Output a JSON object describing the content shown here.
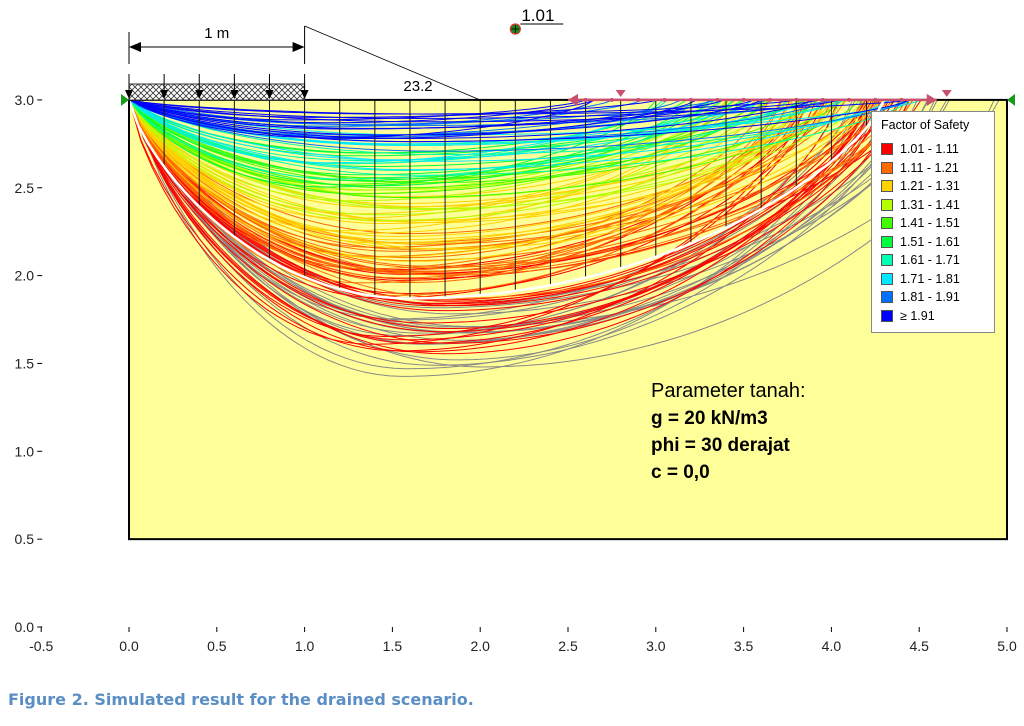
{
  "chart_data": {
    "type": "slope-stability-slip-surfaces",
    "xlim": [
      -0.5,
      5.0
    ],
    "ylim": [
      0.0,
      3.0
    ],
    "x_ticks": [
      "-0.5",
      "0.0",
      "0.5",
      "1.0",
      "1.5",
      "2.0",
      "2.5",
      "3.0",
      "3.5",
      "4.0",
      "4.5",
      "5.0"
    ],
    "y_ticks": [
      "0.0",
      "0.5",
      "1.0",
      "1.5",
      "2.0",
      "2.5",
      "3.0"
    ],
    "soil_region": {
      "x": [
        0.0,
        5.0
      ],
      "y": [
        0.5,
        3.0
      ],
      "color": "#ffff99"
    },
    "surcharge": {
      "x": [
        0.0,
        1.0
      ],
      "dimension_label": "1 m"
    },
    "angle_label": "23.2",
    "critical_center": {
      "x": 2.2,
      "y": 3.4,
      "fos_label": "1.01"
    },
    "critical_surface": {
      "x_entry": 0.0,
      "x_exit": 4.3,
      "lowest_y": 1.87,
      "lowest_x": 1.6
    },
    "legend": {
      "title": "Factor of Safety",
      "placement": "top-right",
      "entries": [
        {
          "label": "1.01 - 1.11",
          "color": "#ff0000"
        },
        {
          "label": "1.11 - 1.21",
          "color": "#ff6a00"
        },
        {
          "label": "1.21 - 1.31",
          "color": "#ffd200"
        },
        {
          "label": "1.31 - 1.41",
          "color": "#b4ff00"
        },
        {
          "label": "1.41 - 1.51",
          "color": "#40ff00"
        },
        {
          "label": "1.51 - 1.61",
          "color": "#00ff40"
        },
        {
          "label": "1.61 - 1.71",
          "color": "#00ffb0"
        },
        {
          "label": "1.71 - 1.81",
          "color": "#00e8ff"
        },
        {
          "label": "1.81 - 1.91",
          "color": "#0070ff"
        },
        {
          "label": "≥ 1.91",
          "color": "#0000ff"
        }
      ]
    }
  },
  "annotation": {
    "heading": "Parameter tanah:",
    "lines": [
      "g = 20 kN/m3",
      "phi = 30 derajat",
      "c = 0,0"
    ]
  },
  "caption": "Figure 2.  Simulated result for the drained scenario."
}
